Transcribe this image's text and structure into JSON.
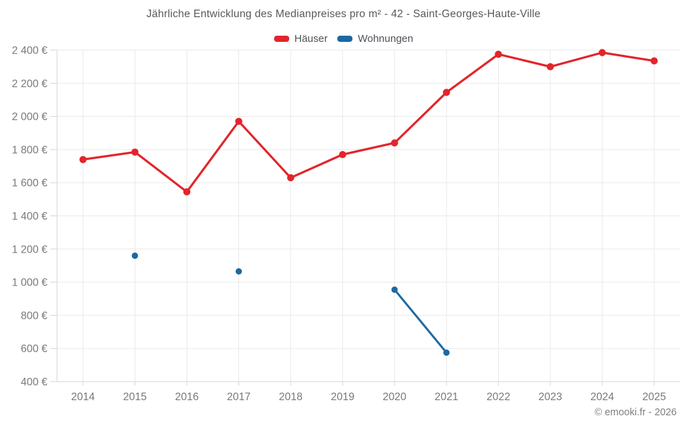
{
  "footer": {
    "copyright": "© emooki.fr - 2026"
  },
  "chart_data": {
    "type": "line",
    "title": "Jährliche Entwicklung des Medianpreises pro m² - 42 - Saint-Georges-Haute-Ville",
    "categories": [
      "2014",
      "2015",
      "2016",
      "2017",
      "2018",
      "2019",
      "2020",
      "2021",
      "2022",
      "2023",
      "2024",
      "2025"
    ],
    "series": [
      {
        "name": "Häuser",
        "slug": "hauser",
        "color": "#e1252b",
        "values": [
          1740,
          1785,
          1545,
          1970,
          1630,
          1770,
          1840,
          2145,
          2375,
          2300,
          2385,
          2335
        ]
      },
      {
        "name": "Wohnungen",
        "slug": "wohnungen",
        "color": "#1a69a2",
        "values": [
          null,
          1160,
          null,
          1065,
          null,
          null,
          955,
          575,
          null,
          null,
          null,
          null
        ]
      }
    ],
    "ylim": [
      400,
      2400
    ],
    "yticks": [
      400,
      600,
      800,
      1000,
      1200,
      1400,
      1600,
      1800,
      2000,
      2200,
      2400
    ],
    "ytick_labels": [
      "400 €",
      "600 €",
      "800 €",
      "1 000 €",
      "1 200 €",
      "1 400 €",
      "1 600 €",
      "1 800 €",
      "2 000 €",
      "2 200 €",
      "2 400 €"
    ],
    "currency_suffix": " €",
    "grid": true,
    "legend_position": "top",
    "grid_color": "#e9e9e9",
    "axis_color": "#d6d6d6"
  }
}
